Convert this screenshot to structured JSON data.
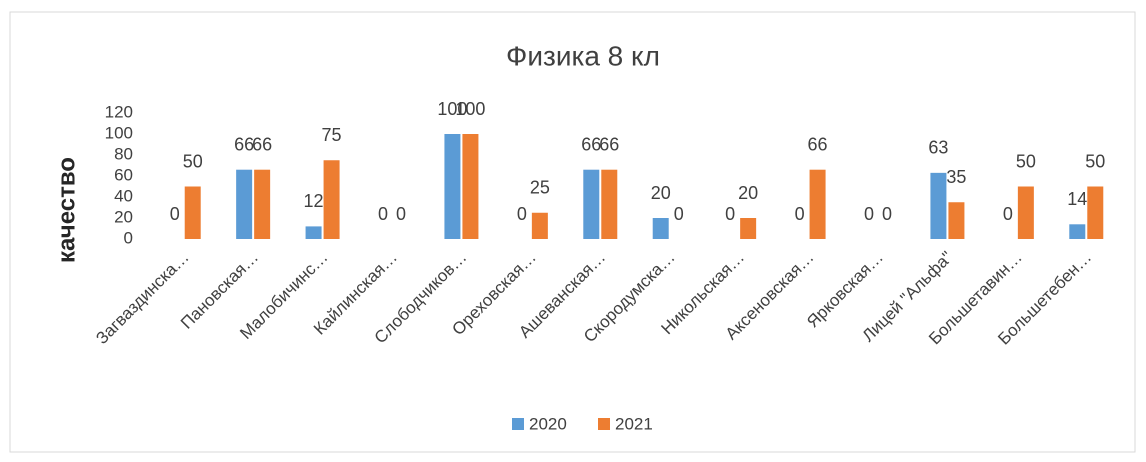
{
  "chart_data": {
    "type": "bar",
    "title": "Физика 8 кл",
    "y_label": "качество",
    "categories": [
      "Загваздинска…",
      "Пановская…",
      "Малобичинс…",
      "Кайлинская…",
      "Слободчиков…",
      "Ореховская…",
      "Ашеванская…",
      "Скородумска…",
      "Никольская…",
      "Аксеновская…",
      "Ярковская…",
      "Лицей \"Альфа\"",
      "Большетавин…",
      "Большетебен…"
    ],
    "series": [
      {
        "name": "2020",
        "color": "#5b9bd5",
        "values": [
          0,
          66,
          12,
          0,
          100,
          0,
          66,
          20,
          0,
          0,
          0,
          63,
          0,
          14
        ]
      },
      {
        "name": "2021",
        "color": "#ed7d31",
        "values": [
          50,
          66,
          75,
          0,
          100,
          25,
          66,
          0,
          20,
          66,
          0,
          35,
          50,
          50
        ]
      }
    ],
    "ylim": [
      0,
      120
    ],
    "yticks": [
      0,
      20,
      40,
      60,
      80,
      100,
      120
    ],
    "grid": false,
    "legend": "bottom"
  }
}
